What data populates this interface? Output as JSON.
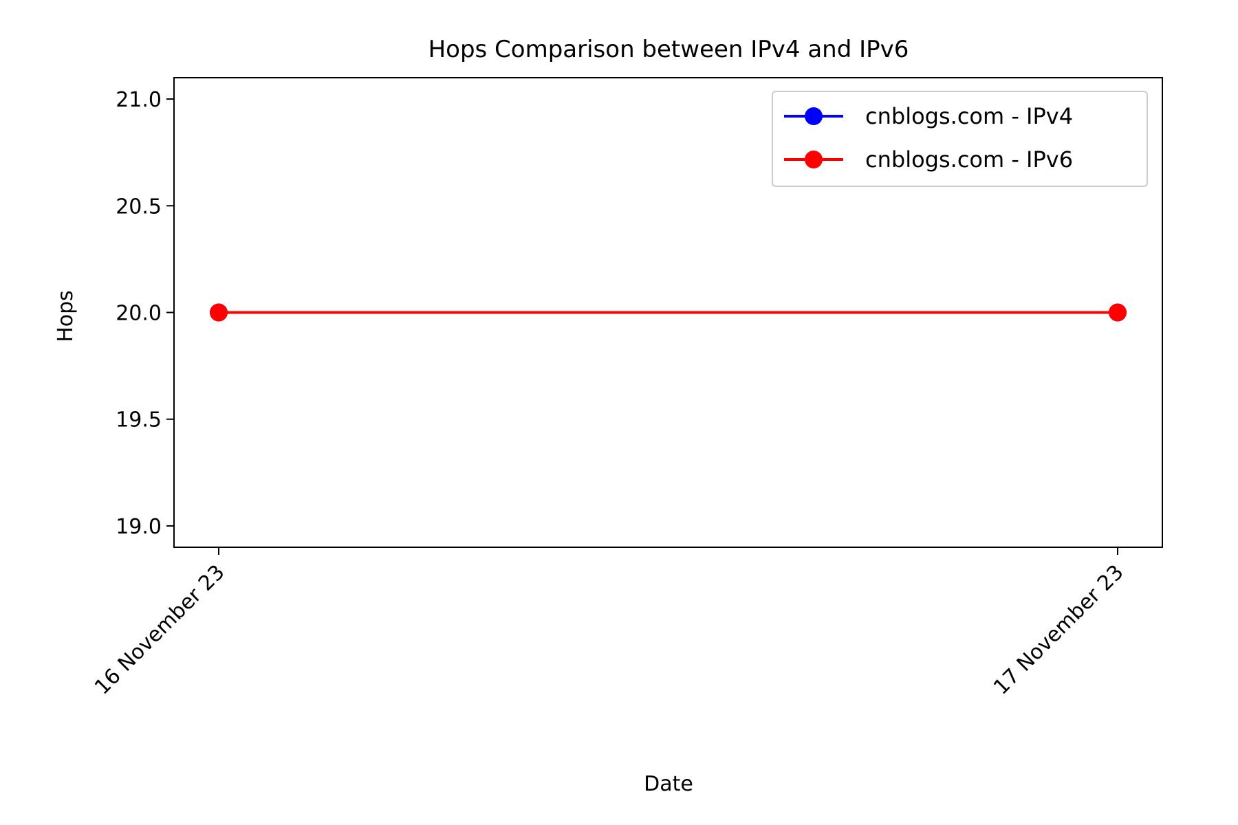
{
  "chart_data": {
    "type": "line",
    "title": "Hops Comparison between IPv4 and IPv6",
    "xlabel": "Date",
    "ylabel": "Hops",
    "x": [
      "16 November 23",
      "17 November 23"
    ],
    "ylim": [
      18.9,
      21.1
    ],
    "yticks": [
      19.0,
      19.5,
      20.0,
      20.5,
      21.0
    ],
    "grid": false,
    "legend_position": "top-right",
    "series": [
      {
        "name": "cnblogs.com - IPv4",
        "color": "#0000ff",
        "values": [
          20,
          20
        ]
      },
      {
        "name": "cnblogs.com - IPv6",
        "color": "#ff0000",
        "values": [
          20,
          20
        ]
      }
    ]
  }
}
